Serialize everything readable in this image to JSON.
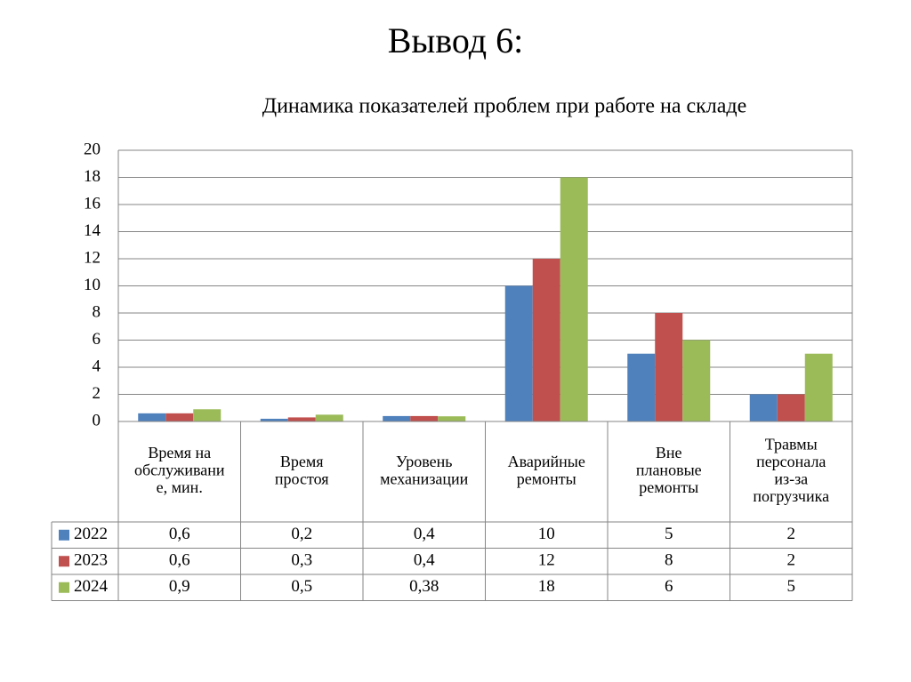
{
  "title": "Вывод 6:",
  "chart_data": {
    "type": "bar",
    "title": "Динамика показателей проблем при работе на складе",
    "categories": [
      [
        "Время на",
        "обслуживани",
        "е, мин."
      ],
      [
        "Время",
        "простоя"
      ],
      [
        "Уровень",
        "механизации"
      ],
      [
        "Аварийные",
        "ремонты"
      ],
      [
        "Вне",
        "плановые",
        "ремонты"
      ],
      [
        "Травмы",
        "персонала",
        "из-за",
        "погрузчика"
      ]
    ],
    "series": [
      {
        "name": "2022",
        "color": "#4f81bd",
        "values": [
          0.6,
          0.2,
          0.4,
          10,
          5,
          2
        ],
        "value_labels": [
          "0,6",
          "0,2",
          "0,4",
          "10",
          "5",
          "2"
        ]
      },
      {
        "name": "2023",
        "color": "#c0504d",
        "values": [
          0.6,
          0.3,
          0.4,
          12,
          8,
          2
        ],
        "value_labels": [
          "0,6",
          "0,3",
          "0,4",
          "12",
          "8",
          "2"
        ]
      },
      {
        "name": "2024",
        "color": "#9bbb59",
        "values": [
          0.9,
          0.5,
          0.38,
          18,
          6,
          5
        ],
        "value_labels": [
          "0,9",
          "0,5",
          "0,38",
          "18",
          "6",
          "5"
        ]
      }
    ],
    "ylim": [
      0,
      20
    ],
    "yticks": [
      0,
      2,
      4,
      6,
      8,
      10,
      12,
      14,
      16,
      18,
      20
    ],
    "grid": true
  }
}
